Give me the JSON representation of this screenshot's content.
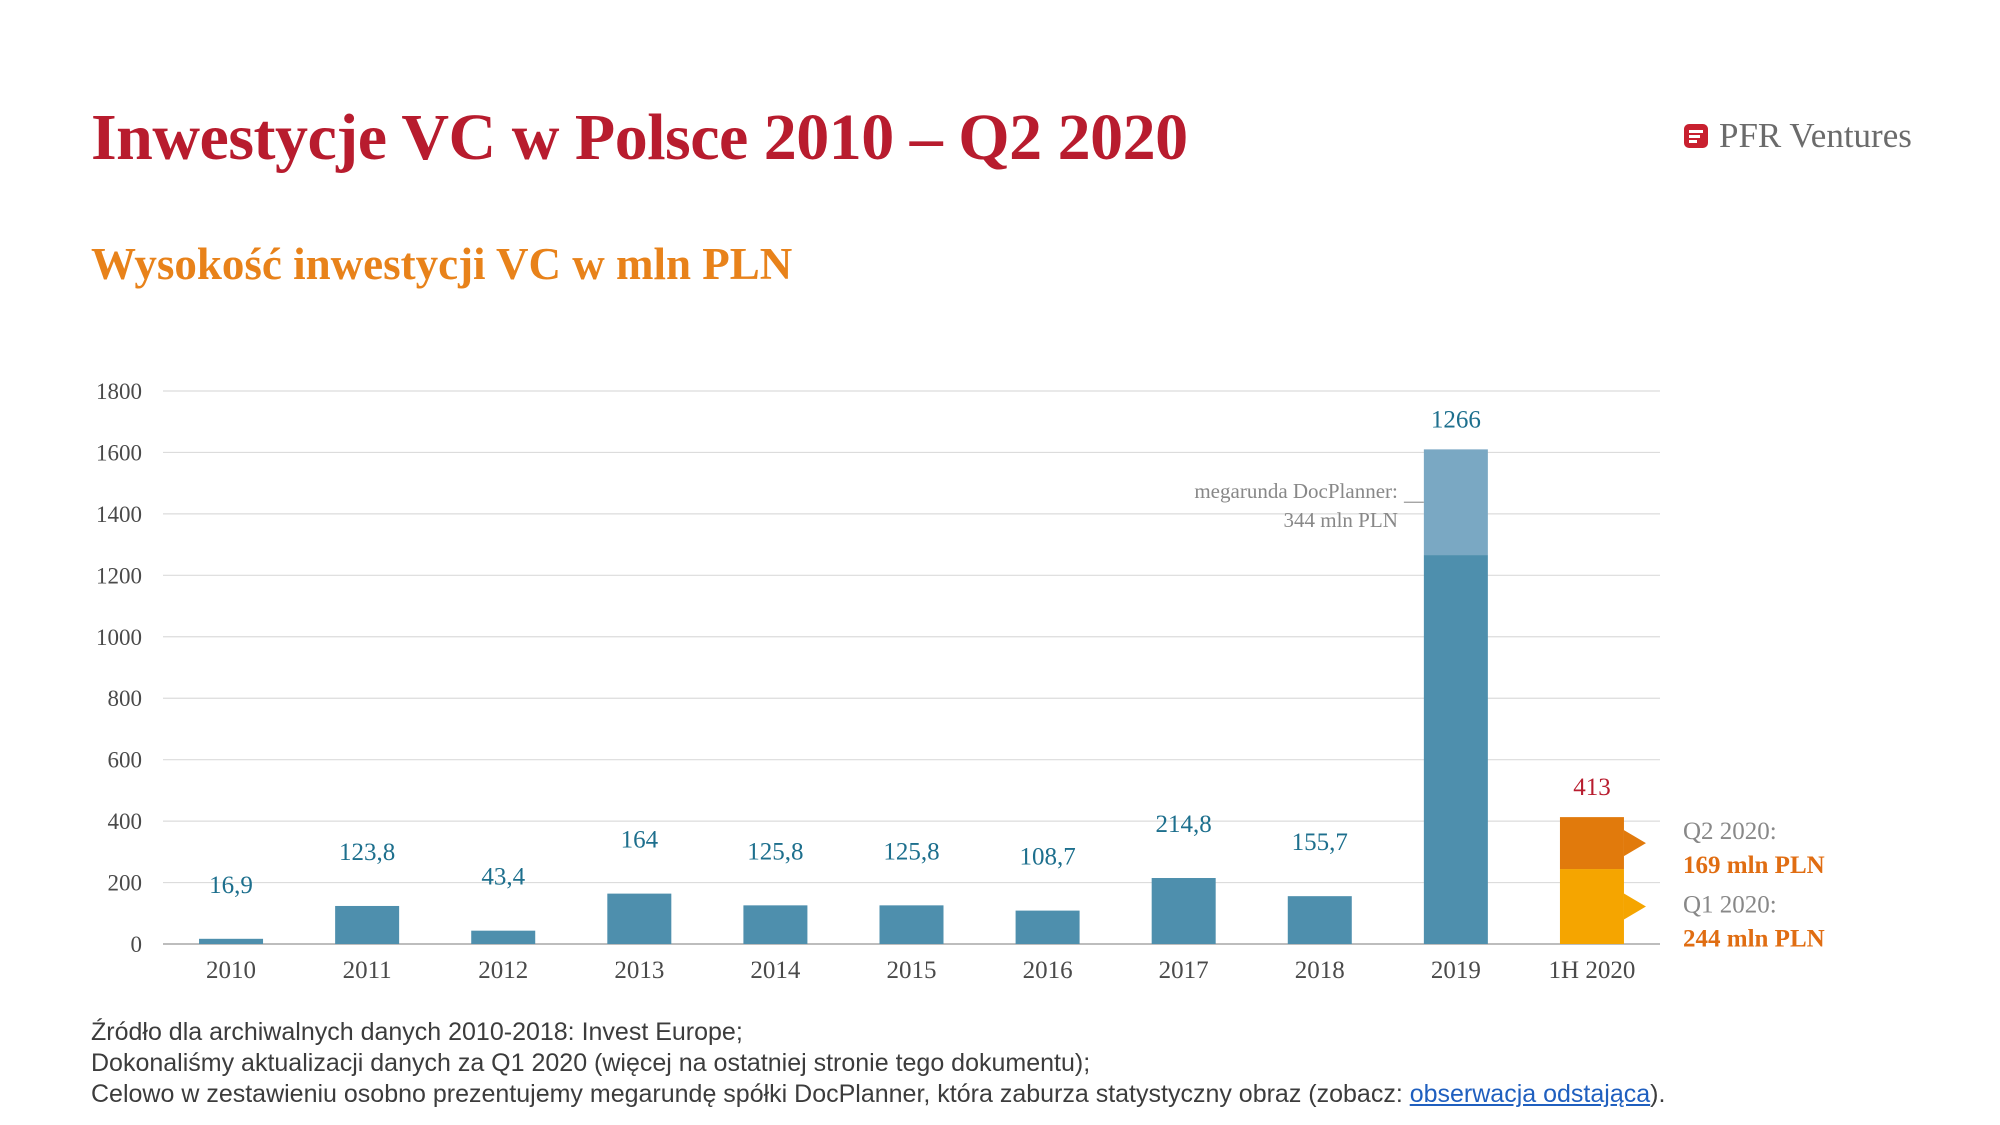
{
  "header": {
    "title": "Inwestycje VC w Polsce 2010 – Q2 2020",
    "brand": "PFR Ventures",
    "brand_icon": "pfr-logo-icon"
  },
  "subtitle": "Wysokość inwestycji VC w mln PLN",
  "chart_data": {
    "type": "bar",
    "ylim": [
      0,
      1800
    ],
    "yticks": [
      "1800",
      "1600",
      "1400",
      "1200",
      "1000",
      "800",
      "600",
      "400",
      "200",
      "0"
    ],
    "grid": true,
    "categories": [
      "2010",
      "2011",
      "2012",
      "2013",
      "2014",
      "2015",
      "2016",
      "2017",
      "2018",
      "2019",
      "1H 2020"
    ],
    "series": [
      {
        "values": [
          16.9,
          123.8,
          43.4,
          164,
          125.8,
          125.8,
          108.7,
          214.8,
          155.7,
          1266,
          413
        ]
      }
    ],
    "data_labels": [
      "16,9",
      "123,8",
      "43,4",
      "164",
      "125,8",
      "125,8",
      "108,7",
      "214,8",
      "155,7",
      "1266",
      "413"
    ],
    "stack_2019": {
      "base": 1266,
      "megaround": 344
    },
    "stack_2020": {
      "q1": 244,
      "q2": 169
    },
    "annotation": {
      "line1": "megarunda DocPlanner:",
      "line2": "344 mln PLN"
    },
    "q2_label": {
      "line1": "Q2 2020:",
      "line2": "169 mln PLN"
    },
    "q1_label": {
      "line1": "Q1 2020:",
      "line2": "244 mln PLN"
    },
    "colors": {
      "bar": "#4e8fad",
      "megaround": "#7aa8c3",
      "q1": "#f5a500",
      "q2": "#e17a0c",
      "label_blue": "#1d6f8d",
      "label_red": "#b81c2e",
      "label_orange": "#e06d12",
      "label_gray": "#888888",
      "grid": "#dcdcdc",
      "axis_text": "#4a4a4a"
    }
  },
  "footnote": {
    "line1": "Źródło dla archiwalnych danych 2010-2018: Invest Europe;",
    "line2": "Dokonaliśmy aktualizacji danych za Q1 2020 (więcej na ostatniej stronie tego dokumentu);",
    "line3_prefix": "Celowo w zestawieniu osobno prezentujemy megarundę spółki DocPlanner, która zaburza statystyczny obraz (zobacz: ",
    "link": "obserwacja odstająca",
    "line3_suffix": ")."
  }
}
